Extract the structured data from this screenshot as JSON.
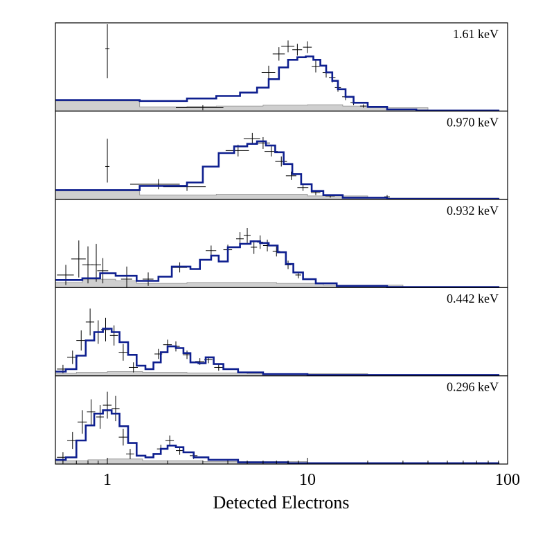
{
  "chart_data": {
    "type": "line",
    "xlabel": "Detected Electrons",
    "xscale": "log",
    "xlim": [
      0.55,
      100
    ],
    "xticks": [
      {
        "value": 1,
        "label": "1"
      },
      {
        "value": 10,
        "label": "10"
      },
      {
        "value": 100,
        "label": "100"
      }
    ],
    "colors": {
      "model": "#0e1f8f",
      "background": "#cfcfcf",
      "data": "#000000"
    },
    "panels": [
      {
        "label": "1.61 keV",
        "ymax": 1.0,
        "model": [
          [
            0.55,
            0.13
          ],
          [
            0.75,
            0.13
          ],
          [
            1.45,
            0.12
          ],
          [
            2.5,
            0.15
          ],
          [
            3.5,
            0.18
          ],
          [
            4.6,
            0.22
          ],
          [
            5.6,
            0.28
          ],
          [
            6.4,
            0.38
          ],
          [
            7.2,
            0.52
          ],
          [
            8.0,
            0.61
          ],
          [
            8.9,
            0.64
          ],
          [
            9.8,
            0.65
          ],
          [
            10.7,
            0.61
          ],
          [
            11.6,
            0.54
          ],
          [
            12.4,
            0.46
          ],
          [
            13.3,
            0.36
          ],
          [
            14.2,
            0.26
          ],
          [
            15.5,
            0.17
          ],
          [
            17,
            0.1
          ],
          [
            20,
            0.05
          ],
          [
            25,
            0.02
          ],
          [
            35,
            0.006
          ],
          [
            90,
            0.0
          ]
        ],
        "background": [
          [
            0.55,
            0.12
          ],
          [
            0.75,
            0.12
          ],
          [
            1.45,
            0.05
          ],
          [
            2.5,
            0.055
          ],
          [
            3.5,
            0.06
          ],
          [
            6,
            0.07
          ],
          [
            10,
            0.075
          ],
          [
            15,
            0.06
          ],
          [
            20,
            0.04
          ],
          [
            40,
            0.01
          ],
          [
            90,
            0.0
          ]
        ],
        "points": [
          [
            1.0,
            0.74,
            0.0,
            0.62,
            0.35
          ],
          [
            3.0,
            0.04,
            0.8,
            0.03,
            0.03
          ],
          [
            6.4,
            0.46,
            0.5,
            0.08,
            0.08
          ],
          [
            7.2,
            0.68,
            0.5,
            0.08,
            0.08
          ],
          [
            8.0,
            0.77,
            0.6,
            0.07,
            0.07
          ],
          [
            8.9,
            0.73,
            0.5,
            0.07,
            0.07
          ],
          [
            10.0,
            0.76,
            0.5,
            0.07,
            0.07
          ],
          [
            11.0,
            0.53,
            0.5,
            0.07,
            0.07
          ],
          [
            12.4,
            0.46,
            0.5,
            0.06,
            0.06
          ],
          [
            13.3,
            0.4,
            0.5,
            0.06,
            0.06
          ],
          [
            14.2,
            0.28,
            0.5,
            0.05,
            0.05
          ],
          [
            15.5,
            0.17,
            0.6,
            0.04,
            0.04
          ],
          [
            17.0,
            0.1,
            0.6,
            0.03,
            0.03
          ],
          [
            19.0,
            0.06,
            0.7,
            0.02,
            0.02
          ]
        ]
      },
      {
        "label": "0.970 keV",
        "ymax": 1.0,
        "model": [
          [
            0.55,
            0.11
          ],
          [
            0.75,
            0.11
          ],
          [
            1.45,
            0.16
          ],
          [
            2.5,
            0.2
          ],
          [
            3.0,
            0.39
          ],
          [
            3.6,
            0.55
          ],
          [
            4.3,
            0.63
          ],
          [
            5.0,
            0.66
          ],
          [
            5.6,
            0.69
          ],
          [
            6.2,
            0.64
          ],
          [
            6.9,
            0.56
          ],
          [
            7.6,
            0.42
          ],
          [
            8.4,
            0.3
          ],
          [
            9.3,
            0.18
          ],
          [
            10.5,
            0.1
          ],
          [
            12,
            0.05
          ],
          [
            15,
            0.02
          ],
          [
            25,
            0.005
          ],
          [
            90,
            0.0
          ]
        ],
        "background": [
          [
            0.55,
            0.1
          ],
          [
            0.75,
            0.1
          ],
          [
            1.45,
            0.05
          ],
          [
            2.5,
            0.05
          ],
          [
            3.5,
            0.06
          ],
          [
            6,
            0.06
          ],
          [
            10,
            0.04
          ],
          [
            20,
            0.015
          ],
          [
            90,
            0.0
          ]
        ],
        "points": [
          [
            1.0,
            0.39,
            0.0,
            0.33,
            0.19
          ],
          [
            1.8,
            0.18,
            0.5,
            0.06,
            0.06
          ],
          [
            2.5,
            0.15,
            0.6,
            0.05,
            0.05
          ],
          [
            4.5,
            0.58,
            0.6,
            0.07,
            0.07
          ],
          [
            5.3,
            0.72,
            0.5,
            0.07,
            0.07
          ],
          [
            6.0,
            0.67,
            0.5,
            0.07,
            0.07
          ],
          [
            6.6,
            0.57,
            0.5,
            0.06,
            0.06
          ],
          [
            7.4,
            0.45,
            0.5,
            0.06,
            0.06
          ],
          [
            8.3,
            0.28,
            0.5,
            0.05,
            0.05
          ],
          [
            9.5,
            0.14,
            0.6,
            0.04,
            0.04
          ],
          [
            11.0,
            0.08,
            0.6,
            0.03,
            0.03
          ],
          [
            13.0,
            0.04,
            0.7,
            0.02,
            0.02
          ],
          [
            25.0,
            0.03,
            0.8,
            0.02,
            0.02
          ]
        ]
      },
      {
        "label": "0.932 keV",
        "ymax": 1.0,
        "model": [
          [
            0.55,
            0.09
          ],
          [
            0.75,
            0.11
          ],
          [
            0.92,
            0.17
          ],
          [
            1.1,
            0.14
          ],
          [
            1.4,
            0.08
          ],
          [
            1.8,
            0.13
          ],
          [
            2.1,
            0.25
          ],
          [
            2.6,
            0.22
          ],
          [
            2.9,
            0.33
          ],
          [
            3.3,
            0.38
          ],
          [
            3.6,
            0.31
          ],
          [
            4.0,
            0.48
          ],
          [
            4.6,
            0.52
          ],
          [
            5.2,
            0.55
          ],
          [
            5.8,
            0.53
          ],
          [
            6.4,
            0.5
          ],
          [
            7.1,
            0.42
          ],
          [
            7.8,
            0.28
          ],
          [
            8.5,
            0.18
          ],
          [
            9.5,
            0.1
          ],
          [
            11,
            0.05
          ],
          [
            14,
            0.02
          ],
          [
            25,
            0.005
          ],
          [
            90,
            0.0
          ]
        ],
        "background": [
          [
            0.55,
            0.06
          ],
          [
            0.75,
            0.1
          ],
          [
            1.1,
            0.08
          ],
          [
            1.4,
            0.05
          ],
          [
            2.5,
            0.06
          ],
          [
            4,
            0.06
          ],
          [
            7,
            0.05
          ],
          [
            12,
            0.03
          ],
          [
            30,
            0.01
          ],
          [
            90,
            0.0
          ]
        ],
        "points": [
          [
            0.62,
            0.15,
            0.06,
            0.12,
            0.12
          ],
          [
            0.72,
            0.34,
            0.06,
            0.22,
            0.22
          ],
          [
            0.8,
            0.27,
            0.05,
            0.22,
            0.22
          ],
          [
            0.88,
            0.27,
            0.05,
            0.25,
            0.2
          ],
          [
            0.95,
            0.2,
            0.06,
            0.15,
            0.15
          ],
          [
            1.25,
            0.1,
            0.08,
            0.15,
            0.1
          ],
          [
            1.6,
            0.1,
            0.1,
            0.08,
            0.08
          ],
          [
            2.3,
            0.24,
            0.2,
            0.06,
            0.06
          ],
          [
            3.3,
            0.44,
            0.2,
            0.06,
            0.06
          ],
          [
            4.0,
            0.45,
            0.2,
            0.06,
            0.06
          ],
          [
            4.6,
            0.58,
            0.2,
            0.08,
            0.08
          ],
          [
            5.0,
            0.62,
            0.2,
            0.09,
            0.09
          ],
          [
            5.4,
            0.48,
            0.2,
            0.08,
            0.08
          ],
          [
            5.8,
            0.54,
            0.2,
            0.08,
            0.08
          ],
          [
            6.3,
            0.5,
            0.3,
            0.07,
            0.07
          ],
          [
            7.0,
            0.43,
            0.3,
            0.06,
            0.06
          ],
          [
            8.0,
            0.27,
            0.3,
            0.05,
            0.05
          ],
          [
            9.0,
            0.15,
            0.3,
            0.04,
            0.04
          ]
        ]
      },
      {
        "label": "0.442 keV",
        "ymax": 1.0,
        "model": [
          [
            0.55,
            0.05
          ],
          [
            0.62,
            0.08
          ],
          [
            0.7,
            0.24
          ],
          [
            0.78,
            0.42
          ],
          [
            0.86,
            0.52
          ],
          [
            0.95,
            0.56
          ],
          [
            1.05,
            0.52
          ],
          [
            1.15,
            0.4
          ],
          [
            1.27,
            0.25
          ],
          [
            1.4,
            0.12
          ],
          [
            1.55,
            0.08
          ],
          [
            1.7,
            0.16
          ],
          [
            1.85,
            0.28
          ],
          [
            2.0,
            0.35
          ],
          [
            2.2,
            0.33
          ],
          [
            2.4,
            0.27
          ],
          [
            2.6,
            0.16
          ],
          [
            2.85,
            0.15
          ],
          [
            3.1,
            0.22
          ],
          [
            3.4,
            0.14
          ],
          [
            3.8,
            0.08
          ],
          [
            4.5,
            0.04
          ],
          [
            6,
            0.02
          ],
          [
            10,
            0.01
          ],
          [
            90,
            0.0
          ]
        ],
        "background": [
          [
            0.55,
            0.03
          ],
          [
            0.7,
            0.04
          ],
          [
            1.0,
            0.05
          ],
          [
            1.5,
            0.04
          ],
          [
            2.5,
            0.035
          ],
          [
            5,
            0.025
          ],
          [
            20,
            0.01
          ],
          [
            90,
            0.0
          ]
        ],
        "points": [
          [
            0.6,
            0.08,
            0.04,
            0.05,
            0.05
          ],
          [
            0.67,
            0.22,
            0.04,
            0.08,
            0.08
          ],
          [
            0.74,
            0.42,
            0.04,
            0.12,
            0.12
          ],
          [
            0.82,
            0.64,
            0.04,
            0.16,
            0.16
          ],
          [
            0.9,
            0.52,
            0.04,
            0.14,
            0.14
          ],
          [
            0.98,
            0.55,
            0.05,
            0.14,
            0.14
          ],
          [
            1.08,
            0.48,
            0.05,
            0.12,
            0.12
          ],
          [
            1.2,
            0.28,
            0.06,
            0.1,
            0.1
          ],
          [
            1.35,
            0.1,
            0.07,
            0.06,
            0.06
          ],
          [
            1.8,
            0.26,
            0.08,
            0.06,
            0.06
          ],
          [
            2.0,
            0.37,
            0.1,
            0.06,
            0.06
          ],
          [
            2.2,
            0.35,
            0.1,
            0.06,
            0.06
          ],
          [
            2.5,
            0.25,
            0.12,
            0.05,
            0.05
          ],
          [
            2.9,
            0.17,
            0.15,
            0.04,
            0.04
          ],
          [
            3.2,
            0.19,
            0.15,
            0.04,
            0.04
          ],
          [
            3.6,
            0.1,
            0.18,
            0.04,
            0.04
          ]
        ]
      },
      {
        "label": "0.296 keV",
        "ymax": 1.0,
        "model": [
          [
            0.55,
            0.05
          ],
          [
            0.62,
            0.08
          ],
          [
            0.7,
            0.28
          ],
          [
            0.78,
            0.46
          ],
          [
            0.86,
            0.6
          ],
          [
            0.95,
            0.64
          ],
          [
            1.05,
            0.6
          ],
          [
            1.15,
            0.45
          ],
          [
            1.27,
            0.25
          ],
          [
            1.4,
            0.1
          ],
          [
            1.55,
            0.08
          ],
          [
            1.7,
            0.12
          ],
          [
            1.85,
            0.18
          ],
          [
            2.0,
            0.22
          ],
          [
            2.2,
            0.2
          ],
          [
            2.4,
            0.14
          ],
          [
            2.7,
            0.08
          ],
          [
            3.2,
            0.05
          ],
          [
            4.5,
            0.02
          ],
          [
            8,
            0.01
          ],
          [
            90,
            0.0
          ]
        ],
        "background": [
          [
            0.55,
            0.04
          ],
          [
            0.8,
            0.05
          ],
          [
            1.0,
            0.06
          ],
          [
            1.5,
            0.04
          ],
          [
            3,
            0.03
          ],
          [
            10,
            0.015
          ],
          [
            90,
            0.0
          ]
        ],
        "points": [
          [
            0.6,
            0.08,
            0.04,
            0.06,
            0.06
          ],
          [
            0.67,
            0.28,
            0.04,
            0.1,
            0.1
          ],
          [
            0.75,
            0.5,
            0.04,
            0.14,
            0.14
          ],
          [
            0.83,
            0.62,
            0.04,
            0.15,
            0.15
          ],
          [
            0.92,
            0.56,
            0.04,
            0.14,
            0.14
          ],
          [
            1.0,
            0.7,
            0.05,
            0.16,
            0.16
          ],
          [
            1.1,
            0.66,
            0.05,
            0.15,
            0.15
          ],
          [
            1.2,
            0.32,
            0.06,
            0.1,
            0.1
          ],
          [
            1.3,
            0.12,
            0.06,
            0.06,
            0.06
          ],
          [
            1.85,
            0.18,
            0.08,
            0.05,
            0.05
          ],
          [
            2.05,
            0.28,
            0.1,
            0.06,
            0.06
          ],
          [
            2.3,
            0.16,
            0.1,
            0.05,
            0.05
          ],
          [
            2.7,
            0.1,
            0.12,
            0.04,
            0.04
          ]
        ]
      }
    ]
  }
}
